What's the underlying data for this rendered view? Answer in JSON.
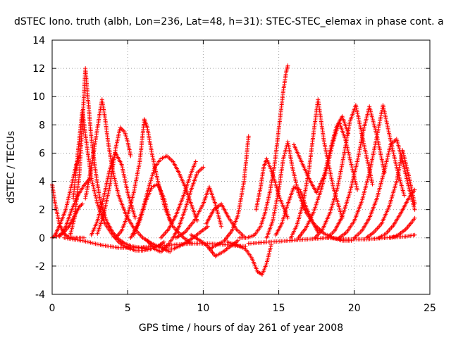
{
  "chart_data": {
    "type": "scatter",
    "title": "dSTEC Iono. truth (albh, Lon=236, Lat=48, h=31): STEC-STEC_elemax in phase cont. a",
    "xlabel": "GPS time / hours of day 261 of year 2008",
    "ylabel": "dSTEC / TECUs",
    "xlim": [
      0,
      25
    ],
    "ylim": [
      -4,
      14
    ],
    "xticks": [
      0,
      5,
      10,
      15,
      20,
      25
    ],
    "yticks": [
      -4,
      -2,
      0,
      2,
      4,
      6,
      8,
      10,
      12,
      14
    ],
    "grid": true,
    "legend": "none",
    "marker": "plus",
    "colors": {
      "series": "#ff0000",
      "grid": "#a0a0a0",
      "axis": "#000000"
    },
    "series": [
      {
        "x": [
          0.0,
          0.2,
          0.5,
          0.8,
          1.0,
          1.3,
          1.6,
          1.9,
          2.1
        ],
        "y": [
          3.8,
          2.4,
          0.9,
          0.3,
          0.1,
          0.0,
          0.0,
          0.0,
          0.0
        ]
      },
      {
        "x": [
          0.3,
          0.7,
          1.1,
          1.5,
          1.8,
          2.0
        ],
        "y": [
          0.1,
          0.3,
          0.8,
          1.6,
          2.2,
          2.4
        ]
      },
      {
        "x": [
          0.0,
          0.2,
          0.5,
          0.9,
          1.3,
          1.6,
          1.8
        ],
        "y": [
          0.0,
          0.2,
          0.9,
          2.0,
          3.8,
          5.2,
          5.8
        ]
      },
      {
        "x": [
          0.5,
          0.9,
          1.3,
          1.7,
          2.1,
          2.5
        ],
        "y": [
          0.1,
          0.8,
          2.0,
          3.0,
          3.7,
          4.2
        ]
      },
      {
        "x": [
          1.2,
          1.5,
          1.8,
          2.0,
          2.2,
          2.4,
          2.6,
          2.9,
          3.2,
          3.6,
          4.0,
          4.4,
          4.8,
          5.3,
          5.8,
          6.3
        ],
        "y": [
          0.2,
          1.5,
          4.5,
          8.0,
          12.0,
          9.5,
          7.0,
          4.5,
          2.5,
          1.2,
          0.4,
          -0.1,
          -0.4,
          -0.6,
          -0.7,
          -0.8
        ]
      },
      {
        "x": [
          1.4,
          1.7,
          2.0,
          2.3,
          2.6,
          3.0,
          3.5,
          4.0,
          4.5,
          5.0,
          5.5,
          6.0,
          6.5,
          7.0,
          7.4
        ],
        "y": [
          2.8,
          6.0,
          9.0,
          6.5,
          4.2,
          2.4,
          1.0,
          0.2,
          -0.4,
          -0.7,
          -0.9,
          -0.9,
          -0.8,
          -0.6,
          -0.3
        ]
      },
      {
        "x": [
          2.2,
          2.6,
          3.0,
          3.3,
          3.5,
          3.7,
          4.0,
          4.4,
          4.9,
          5.4,
          6.0,
          6.6,
          7.2,
          7.8
        ],
        "y": [
          2.8,
          5.0,
          7.8,
          9.8,
          8.5,
          6.8,
          4.8,
          3.0,
          1.6,
          0.7,
          0.0,
          -0.4,
          -0.7,
          -1.0
        ]
      },
      {
        "x": [
          2.6,
          3.0,
          3.4,
          3.8,
          4.2,
          4.6,
          5.0,
          5.5
        ],
        "y": [
          0.2,
          1.2,
          2.8,
          4.8,
          6.0,
          5.2,
          3.2,
          1.4
        ]
      },
      {
        "x": [
          3.0,
          3.4,
          3.8,
          4.2,
          4.5,
          4.8,
          5.0,
          5.2
        ],
        "y": [
          0.3,
          1.6,
          3.6,
          6.3,
          7.8,
          7.5,
          6.8,
          5.8
        ]
      },
      {
        "x": [
          0.8,
          2.0,
          3.2,
          4.4,
          5.6,
          6.8,
          8.0,
          9.2,
          10.4,
          11.6,
          12.8
        ],
        "y": [
          0.0,
          -0.2,
          -0.5,
          -0.7,
          -0.7,
          -0.6,
          -0.5,
          -0.4,
          -0.4,
          -0.5,
          -0.6
        ]
      },
      {
        "x": [
          4.2,
          4.6,
          5.0,
          5.4,
          5.8,
          6.1,
          6.3,
          6.6,
          7.0,
          7.5,
          8.0,
          8.6,
          9.2
        ],
        "y": [
          0.0,
          0.5,
          1.6,
          3.2,
          5.4,
          8.4,
          7.8,
          6.0,
          4.0,
          2.0,
          0.8,
          0.1,
          -0.4
        ]
      },
      {
        "x": [
          5.2,
          5.6,
          6.0,
          6.4,
          6.8,
          7.2,
          7.6,
          8.0,
          8.4,
          8.8,
          9.2,
          9.6
        ],
        "y": [
          0.0,
          0.8,
          2.0,
          3.6,
          5.0,
          5.6,
          5.8,
          5.4,
          4.6,
          3.6,
          2.4,
          1.2
        ]
      },
      {
        "x": [
          5.4,
          5.8,
          6.2,
          6.6,
          7.0,
          7.4,
          7.8
        ],
        "y": [
          0.2,
          1.2,
          2.6,
          3.6,
          3.8,
          2.8,
          1.2
        ]
      },
      {
        "x": [
          6.3,
          6.8,
          7.2,
          7.6,
          8.0,
          8.4,
          8.8,
          9.2,
          9.6,
          10.0
        ],
        "y": [
          -0.2,
          -0.8,
          -1.0,
          -0.6,
          0.0,
          0.8,
          2.0,
          3.4,
          4.6,
          5.0
        ]
      },
      {
        "x": [
          7.2,
          7.7,
          8.2,
          8.7,
          9.2,
          9.5
        ],
        "y": [
          0.0,
          0.6,
          1.6,
          3.0,
          4.6,
          5.4
        ]
      },
      {
        "x": [
          7.4,
          8.0,
          8.6,
          9.2,
          9.8,
          10.3
        ],
        "y": [
          -0.8,
          -0.8,
          -0.5,
          -0.1,
          0.4,
          0.8
        ]
      },
      {
        "x": [
          8.2,
          8.8,
          9.4,
          10.0,
          10.4,
          10.8,
          11.2
        ],
        "y": [
          0.0,
          0.4,
          1.2,
          2.4,
          3.6,
          2.4,
          0.8
        ]
      },
      {
        "x": [
          9.2,
          9.8,
          10.3,
          10.8,
          11.3,
          11.8,
          12.3
        ],
        "y": [
          0.2,
          -0.2,
          -0.6,
          -1.3,
          -1.0,
          -0.6,
          -0.2
        ]
      },
      {
        "x": [
          10.4,
          10.9,
          11.4,
          11.9,
          12.3,
          12.7,
          13.0
        ],
        "y": [
          -0.8,
          -0.5,
          -0.2,
          0.5,
          1.6,
          4.0,
          7.2
        ]
      },
      {
        "x": [
          10.2,
          10.7,
          11.2,
          11.7,
          12.2,
          12.7
        ],
        "y": [
          1.0,
          2.0,
          2.4,
          1.4,
          0.6,
          0.1
        ]
      },
      {
        "x": [
          11.6,
          12.2,
          12.8,
          13.2,
          13.6,
          13.9,
          14.2,
          14.5
        ],
        "y": [
          -0.3,
          -0.5,
          -0.8,
          -1.4,
          -2.4,
          -2.6,
          -1.8,
          -0.5
        ]
      },
      {
        "x": [
          12.4,
          12.9,
          13.4,
          13.8,
          14.1,
          14.4,
          14.7,
          14.9,
          15.1,
          15.3,
          15.5,
          15.6
        ],
        "y": [
          0.0,
          0.0,
          0.2,
          0.8,
          1.8,
          3.2,
          5.0,
          6.8,
          8.6,
          10.4,
          11.8,
          12.2
        ]
      },
      {
        "x": [
          13.5,
          13.8,
          14.0,
          14.2,
          14.5,
          14.8,
          15.0,
          15.3,
          15.6
        ],
        "y": [
          2.0,
          3.6,
          5.0,
          5.6,
          4.8,
          3.8,
          3.0,
          2.2,
          1.4
        ]
      },
      {
        "x": [
          14.2,
          14.6,
          15.0,
          15.3,
          15.6,
          15.9,
          16.3,
          16.8,
          17.4,
          18.0,
          18.6,
          19.2,
          19.8
        ],
        "y": [
          0.0,
          1.2,
          3.4,
          5.6,
          6.8,
          5.0,
          3.2,
          1.8,
          0.9,
          0.3,
          0.0,
          -0.2,
          -0.2
        ]
      },
      {
        "x": [
          14.8,
          15.2,
          15.6,
          16.0,
          16.4,
          16.8,
          17.2,
          17.6
        ],
        "y": [
          0.2,
          1.0,
          2.4,
          3.6,
          3.4,
          2.2,
          1.2,
          0.4
        ]
      },
      {
        "x": [
          13.0,
          14.3,
          15.6,
          16.9,
          18.2,
          19.5,
          20.8,
          22.1,
          23.4,
          24.0
        ],
        "y": [
          -0.4,
          -0.3,
          -0.2,
          -0.1,
          0.0,
          -0.1,
          -0.1,
          0.0,
          0.1,
          0.2
        ]
      },
      {
        "x": [
          15.8,
          16.2,
          16.6,
          17.0,
          17.3,
          17.6,
          18.0,
          18.6,
          19.2
        ],
        "y": [
          0.0,
          0.9,
          2.4,
          4.8,
          7.4,
          9.8,
          6.8,
          3.6,
          1.4
        ]
      },
      {
        "x": [
          16.0,
          16.5,
          17.0,
          17.5,
          18.0,
          18.4,
          18.8,
          19.2,
          19.6
        ],
        "y": [
          6.6,
          5.4,
          4.2,
          3.2,
          4.4,
          6.2,
          7.8,
          8.6,
          7.4
        ]
      },
      {
        "x": [
          16.3,
          16.8,
          17.3,
          17.8,
          18.2,
          18.6,
          19.0,
          19.4,
          19.8,
          20.2
        ],
        "y": [
          0.0,
          0.7,
          1.8,
          3.4,
          5.0,
          6.8,
          8.2,
          7.0,
          5.2,
          3.4
        ]
      },
      {
        "x": [
          17.4,
          17.9,
          18.4,
          18.9,
          19.3,
          19.7,
          20.1,
          20.6,
          21.2
        ],
        "y": [
          0.0,
          0.6,
          1.8,
          3.6,
          5.8,
          8.2,
          9.4,
          6.8,
          3.8
        ]
      },
      {
        "x": [
          18.2,
          18.7,
          19.2,
          19.7,
          20.2,
          20.6,
          21.0,
          21.5,
          22.0
        ],
        "y": [
          0.0,
          0.5,
          1.5,
          3.2,
          5.4,
          7.6,
          9.3,
          7.2,
          4.6
        ]
      },
      {
        "x": [
          19.0,
          19.5,
          20.0,
          20.5,
          21.0,
          21.5,
          21.9,
          22.3,
          22.8,
          23.3
        ],
        "y": [
          0.0,
          0.4,
          1.2,
          2.6,
          4.6,
          7.2,
          9.4,
          7.4,
          5.0,
          3.0
        ]
      },
      {
        "x": [
          20.0,
          20.5,
          21.0,
          21.5,
          22.0,
          22.4,
          22.8,
          23.2,
          23.6,
          24.0
        ],
        "y": [
          0.0,
          0.5,
          1.4,
          2.8,
          4.8,
          6.6,
          7.0,
          5.4,
          3.6,
          2.0
        ]
      },
      {
        "x": [
          20.8,
          21.3,
          21.8,
          22.3,
          22.8,
          23.2,
          23.6,
          24.0
        ],
        "y": [
          0.0,
          0.4,
          1.0,
          2.2,
          4.0,
          6.2,
          4.4,
          2.4
        ]
      },
      {
        "x": [
          21.6,
          22.1,
          22.6,
          23.1,
          23.6,
          24.0
        ],
        "y": [
          0.0,
          0.3,
          0.9,
          1.8,
          2.8,
          3.4
        ]
      },
      {
        "x": [
          22.4,
          22.9,
          23.4,
          23.8,
          24.0
        ],
        "y": [
          0.0,
          0.2,
          0.6,
          1.1,
          1.4
        ]
      }
    ]
  }
}
